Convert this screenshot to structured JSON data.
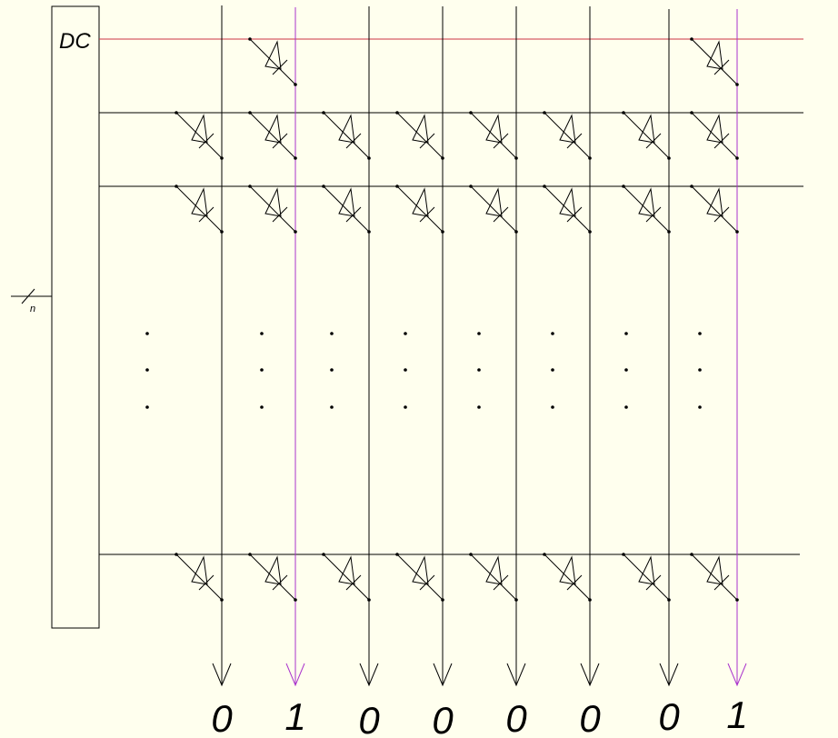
{
  "decoder": {
    "label": "DC",
    "bus_label": "n"
  },
  "outputs": [
    {
      "bit": "0",
      "selected": false
    },
    {
      "bit": "1",
      "selected": true
    },
    {
      "bit": "0",
      "selected": false
    },
    {
      "bit": "0",
      "selected": false
    },
    {
      "bit": "0",
      "selected": false
    },
    {
      "bit": "0",
      "selected": false
    },
    {
      "bit": "0",
      "selected": false
    },
    {
      "bit": "1",
      "selected": true
    }
  ],
  "rows": [
    {
      "selected": true,
      "diodes": [
        false,
        true,
        false,
        false,
        false,
        false,
        false,
        true
      ]
    },
    {
      "selected": false,
      "diodes": [
        true,
        true,
        true,
        true,
        true,
        true,
        true,
        true
      ]
    },
    {
      "selected": false,
      "diodes": [
        true,
        true,
        true,
        true,
        true,
        true,
        true,
        true
      ]
    },
    {
      "selected": false,
      "diodes": [
        true,
        true,
        true,
        true,
        true,
        true,
        true,
        true
      ]
    }
  ],
  "colors": {
    "background": "#ffffee",
    "selected_row": "#cc3344",
    "selected_column": "#aa33cc",
    "line": "#000000"
  }
}
